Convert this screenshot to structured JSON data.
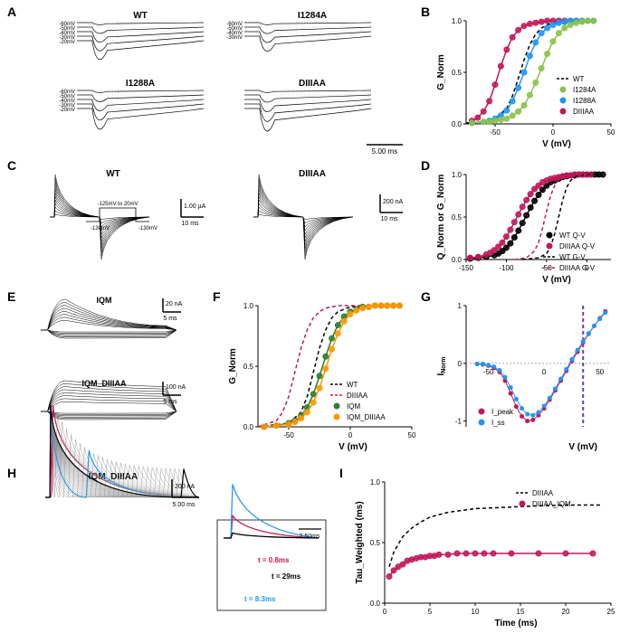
{
  "panelA": {
    "label": "A",
    "traces": {
      "WT": {
        "title": "WT",
        "voltages": [
          "-60mV",
          "-50mV",
          "-40mV",
          "-30mV",
          "-20mV"
        ]
      },
      "I1284A": {
        "title": "I1284A",
        "voltages": [
          "-60mV",
          "-50mV",
          "-40mV",
          "-30mV"
        ]
      },
      "I1288A": {
        "title": "I1288A",
        "voltages": [
          "-60mV",
          "-50mV",
          "-40mV",
          "-30mV",
          "-20mV"
        ]
      },
      "DIIIAA": {
        "title": "DIIIAA",
        "voltages": []
      }
    },
    "scalebar": {
      "label": "5.00 ms"
    },
    "trace_color": "#000000"
  },
  "panelB": {
    "label": "B",
    "ylabel": "G_Norm",
    "xlabel": "V (mV)",
    "ylim": [
      0,
      1.0
    ],
    "ytick_step": 0.5,
    "xlim": [
      -75,
      50
    ],
    "xtick_step": 50,
    "series": {
      "WT": {
        "style": "dashed-line",
        "color": "#000000",
        "label": "WT"
      },
      "I1284A": {
        "style": "circles",
        "color": "#8bc34a",
        "label": "I1284A",
        "x": [
          -70,
          -60,
          -55,
          -50,
          -45,
          -40,
          -35,
          -30,
          -25,
          -20,
          -15,
          -10,
          -5,
          0,
          5,
          10,
          15,
          20,
          25,
          30,
          35
        ],
        "y": [
          0.01,
          0.02,
          0.02,
          0.03,
          0.04,
          0.05,
          0.08,
          0.12,
          0.18,
          0.28,
          0.4,
          0.54,
          0.68,
          0.8,
          0.88,
          0.93,
          0.96,
          0.98,
          0.99,
          1.0,
          1.0
        ]
      },
      "I1288A": {
        "style": "circles",
        "color": "#2196f3",
        "label": "I1288A",
        "x": [
          -70,
          -60,
          -55,
          -50,
          -45,
          -40,
          -35,
          -30,
          -25,
          -20,
          -15,
          -10,
          -5,
          0,
          5,
          10,
          15,
          20,
          25,
          30,
          35
        ],
        "y": [
          0.01,
          0.02,
          0.03,
          0.05,
          0.08,
          0.13,
          0.22,
          0.35,
          0.5,
          0.66,
          0.79,
          0.88,
          0.93,
          0.96,
          0.98,
          0.99,
          1.0,
          1.0,
          1.0,
          1.0,
          1.0
        ]
      },
      "DIIIAA": {
        "style": "circles",
        "color": "#c2185b",
        "label": "DIIIAA",
        "x": [
          -70,
          -65,
          -60,
          -55,
          -50,
          -45,
          -40,
          -35,
          -30,
          -25,
          -20,
          -15,
          -10,
          -5,
          0,
          5,
          10,
          15,
          20
        ],
        "y": [
          0.03,
          0.06,
          0.12,
          0.22,
          0.38,
          0.56,
          0.72,
          0.84,
          0.91,
          0.95,
          0.97,
          0.98,
          0.99,
          1.0,
          1.0,
          1.0,
          1.0,
          1.0,
          1.0
        ]
      }
    },
    "wt_curve": {
      "x": [
        -75,
        -60,
        -50,
        -40,
        -35,
        -30,
        -25,
        -20,
        -15,
        -10,
        -5,
        0,
        10,
        20,
        35
      ],
      "y": [
        0.01,
        0.02,
        0.05,
        0.15,
        0.27,
        0.44,
        0.62,
        0.77,
        0.87,
        0.93,
        0.96,
        0.98,
        1.0,
        1.0,
        1.0
      ]
    },
    "background_color": "#ffffff",
    "marker_size": 4
  },
  "panelC": {
    "label": "C",
    "WT": {
      "title": "WT",
      "scale_y": "1.00 µA",
      "scale_x": "10 ms"
    },
    "DIIIAA": {
      "title": "DIIIAA",
      "scale_y": "200 nA",
      "scale_x": "10 ms"
    },
    "protocol": {
      "hold1": "-130mV",
      "range": "-125mV\nto 20mV",
      "hold2": "-130mV"
    },
    "trace_color": "#000000"
  },
  "panelD": {
    "label": "D",
    "ylabel": "Q_Norm or G_Norm",
    "xlabel": "V (mV)",
    "ylim": [
      0,
      1.0
    ],
    "ytick_step": 0.5,
    "xlim": [
      -150,
      30
    ],
    "xtick_step": 50,
    "series": {
      "WT_QV": {
        "style": "circles",
        "color": "#000000",
        "label": "WT Q-V",
        "x": [
          -145,
          -135,
          -125,
          -115,
          -110,
          -105,
          -100,
          -95,
          -90,
          -85,
          -80,
          -75,
          -70,
          -65,
          -60,
          -55,
          -50,
          -45,
          -40,
          -35,
          -30,
          -25,
          -20,
          -15,
          -10,
          -5,
          0,
          5,
          10,
          15,
          20
        ],
        "y": [
          0.01,
          0.02,
          0.03,
          0.05,
          0.07,
          0.1,
          0.14,
          0.19,
          0.26,
          0.34,
          0.43,
          0.52,
          0.61,
          0.69,
          0.76,
          0.82,
          0.87,
          0.91,
          0.93,
          0.95,
          0.97,
          0.98,
          0.99,
          0.99,
          1.0,
          1.0,
          1.0,
          1.0,
          1.0,
          1.0,
          1.0
        ]
      },
      "DIIIAA_QV": {
        "style": "circles",
        "color": "#c2185b",
        "label": "DIIIAA Q-V",
        "x": [
          -145,
          -135,
          -125,
          -120,
          -115,
          -110,
          -105,
          -100,
          -95,
          -90,
          -85,
          -80,
          -75,
          -70,
          -65,
          -60,
          -55,
          -50,
          -45,
          -40,
          -35,
          -30,
          -25,
          -20,
          -15,
          -10,
          -5,
          0,
          5
        ],
        "y": [
          0.02,
          0.03,
          0.06,
          0.08,
          0.11,
          0.15,
          0.2,
          0.27,
          0.35,
          0.44,
          0.53,
          0.62,
          0.7,
          0.77,
          0.83,
          0.87,
          0.91,
          0.93,
          0.95,
          0.96,
          0.97,
          0.98,
          0.99,
          0.99,
          1.0,
          1.0,
          1.0,
          1.0,
          1.0
        ]
      },
      "WT_GV": {
        "style": "dashed-line",
        "color": "#000000",
        "label": "WT G-V",
        "x": [
          -80,
          -60,
          -50,
          -45,
          -40,
          -35,
          -30,
          -25,
          -20,
          -15,
          -10,
          0,
          10
        ],
        "y": [
          0.0,
          0.02,
          0.07,
          0.15,
          0.3,
          0.5,
          0.7,
          0.85,
          0.93,
          0.97,
          0.99,
          1.0,
          1.0
        ]
      },
      "DIIIAA_GV": {
        "style": "dashed-line",
        "color": "#c2185b",
        "label": "DIIIAA G-V",
        "x": [
          -90,
          -75,
          -65,
          -60,
          -55,
          -50,
          -45,
          -40,
          -35,
          -30,
          -25,
          -15,
          0
        ],
        "y": [
          0.0,
          0.02,
          0.1,
          0.2,
          0.37,
          0.57,
          0.75,
          0.87,
          0.94,
          0.97,
          0.99,
          1.0,
          1.0
        ]
      }
    }
  },
  "panelE": {
    "label": "E",
    "IQM": {
      "title": "IQM",
      "scale_y": "20 nA",
      "scale_x": "5 ms"
    },
    "IQM_DIIIAA": {
      "title": "IQM_DIIIAA",
      "scale_y": "100 nA",
      "scale_x": "5 ms"
    },
    "trace_color": "#000000"
  },
  "panelF": {
    "label": "F",
    "ylabel": "G_Norm",
    "xlabel": "V (mV)",
    "ylim": [
      0,
      1.0
    ],
    "ytick_step": 0.5,
    "xlim": [
      -75,
      50
    ],
    "xtick_step": 50,
    "series": {
      "WT": {
        "style": "dashed-line",
        "color": "#000000",
        "label": "WT",
        "x": [
          -75,
          -50,
          -40,
          -35,
          -30,
          -25,
          -20,
          -15,
          -10,
          0,
          20,
          40
        ],
        "y": [
          0.0,
          0.03,
          0.12,
          0.25,
          0.45,
          0.65,
          0.8,
          0.9,
          0.95,
          0.99,
          1.0,
          1.0
        ]
      },
      "DIIIAA": {
        "style": "dashed-line",
        "color": "#c2185b",
        "label": "DIIIAA",
        "x": [
          -75,
          -60,
          -55,
          -50,
          -45,
          -40,
          -35,
          -30,
          -25,
          -20,
          -10,
          10
        ],
        "y": [
          0.0,
          0.05,
          0.12,
          0.25,
          0.45,
          0.65,
          0.8,
          0.9,
          0.95,
          0.98,
          1.0,
          1.0
        ]
      },
      "IQM": {
        "style": "circles",
        "color": "#2e7d32",
        "label": "IQM",
        "x": [
          -70,
          -60,
          -50,
          -45,
          -40,
          -35,
          -30,
          -25,
          -20,
          -15,
          -10,
          -5,
          0,
          5,
          10,
          15,
          20,
          25,
          30,
          35,
          40
        ],
        "y": [
          0.0,
          0.01,
          0.03,
          0.05,
          0.09,
          0.16,
          0.27,
          0.42,
          0.58,
          0.73,
          0.84,
          0.91,
          0.95,
          0.97,
          0.99,
          0.99,
          1.0,
          1.0,
          1.0,
          1.0,
          1.0
        ]
      },
      "IQM_DIIIAA": {
        "style": "circles",
        "color": "#ff9800",
        "label": "IQM_DIIIAA",
        "x": [
          -70,
          -60,
          -50,
          -45,
          -40,
          -35,
          -30,
          -25,
          -20,
          -15,
          -10,
          -5,
          0,
          5,
          10,
          15,
          20,
          25,
          30,
          35,
          40
        ],
        "y": [
          0.0,
          0.01,
          0.02,
          0.04,
          0.07,
          0.12,
          0.2,
          0.32,
          0.48,
          0.64,
          0.77,
          0.87,
          0.93,
          0.96,
          0.98,
          0.99,
          1.0,
          1.0,
          1.0,
          1.0,
          1.0
        ]
      }
    }
  },
  "panelG": {
    "label": "G",
    "ylabel": "I_Norm",
    "xlabel": "V (mV)",
    "ylim": [
      -1.1,
      1.0
    ],
    "xlim": [
      -70,
      60
    ],
    "xtick_step": 50,
    "vline_x": 35,
    "vline_color": "#673ab7",
    "series": {
      "Ipeak": {
        "color": "#c2185b",
        "label": "I_peak",
        "x": [
          -60,
          -55,
          -50,
          -45,
          -40,
          -35,
          -30,
          -25,
          -20,
          -15,
          -10,
          -5,
          0,
          5,
          10,
          15,
          20,
          25,
          30,
          35,
          40,
          45,
          50,
          55
        ],
        "y": [
          -0.01,
          -0.02,
          -0.04,
          -0.08,
          -0.15,
          -0.3,
          -0.52,
          -0.75,
          -0.92,
          -1.0,
          -0.98,
          -0.9,
          -0.78,
          -0.63,
          -0.47,
          -0.3,
          -0.13,
          0.04,
          0.2,
          0.36,
          0.51,
          0.65,
          0.78,
          0.9
        ]
      },
      "Iss": {
        "color": "#2196f3",
        "label": "I_ss",
        "x": [
          -60,
          -55,
          -50,
          -45,
          -40,
          -35,
          -30,
          -25,
          -20,
          -15,
          -10,
          -5,
          0,
          5,
          10,
          15,
          20,
          25,
          30,
          35,
          40,
          45,
          50,
          55
        ],
        "y": [
          -0.01,
          -0.01,
          -0.03,
          -0.06,
          -0.12,
          -0.24,
          -0.42,
          -0.62,
          -0.78,
          -0.88,
          -0.9,
          -0.85,
          -0.74,
          -0.6,
          -0.44,
          -0.27,
          -0.1,
          0.07,
          0.23,
          0.38,
          0.52,
          0.65,
          0.77,
          0.88
        ]
      }
    }
  },
  "panelH": {
    "label": "H",
    "title": "IQM_DIIIAA",
    "scale_y": "200 nA",
    "scale_x": "5.00 ms",
    "inset_scale": "2.50ms",
    "labels": {
      "t1": "t = 0.8ms",
      "t2": "t = 8.3ms",
      "t3": "t = 29ms"
    },
    "colors": {
      "t1": "#c2185b",
      "t2": "#2196f3",
      "t3": "#000000"
    }
  },
  "panelI": {
    "label": "I",
    "ylabel": "Tau_Weighted (ms)",
    "xlabel": "Time (ms)",
    "ylim": [
      0.0,
      1.0
    ],
    "ytick_step": 0.5,
    "xlim": [
      0,
      25
    ],
    "xtick_step": 5,
    "series": {
      "DIIIAA": {
        "style": "dashed-line",
        "color": "#000000",
        "label": "DIIIAA",
        "x": [
          0.5,
          1,
          2,
          3,
          4,
          5,
          7,
          10,
          13,
          16,
          20,
          24
        ],
        "y": [
          0.3,
          0.42,
          0.55,
          0.62,
          0.67,
          0.71,
          0.75,
          0.78,
          0.79,
          0.8,
          0.81,
          0.81
        ]
      },
      "DIIIAA_IQM": {
        "style": "circles",
        "color": "#c2185b",
        "label": "DIIIAA_IQM",
        "x": [
          0.5,
          1,
          1.5,
          2,
          2.5,
          3,
          3.5,
          4,
          4.5,
          5,
          5.5,
          6,
          7,
          8,
          9,
          10,
          11,
          12,
          14,
          17,
          20,
          23
        ],
        "y": [
          0.22,
          0.27,
          0.3,
          0.32,
          0.35,
          0.36,
          0.37,
          0.38,
          0.38,
          0.39,
          0.39,
          0.4,
          0.4,
          0.41,
          0.41,
          0.41,
          0.41,
          0.41,
          0.41,
          0.41,
          0.41,
          0.41
        ]
      }
    }
  }
}
